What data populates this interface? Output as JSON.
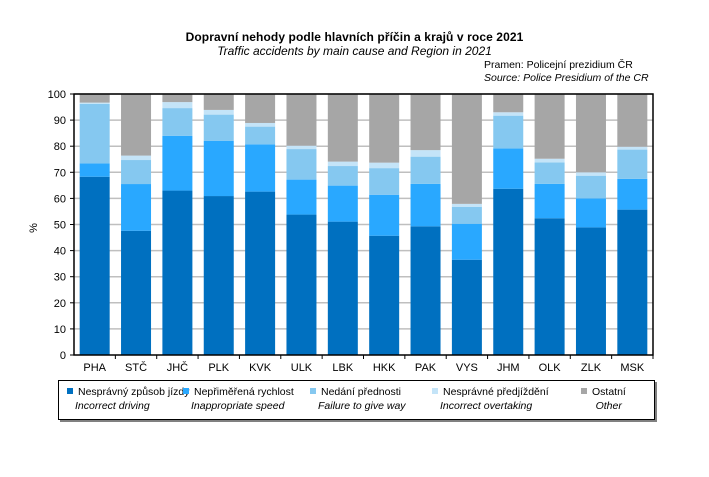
{
  "header": {
    "title": "Dopravní nehody podle hlavních příčin a krajů v roce 2021",
    "subtitle": "Traffic accidents by main cause and Region in 2021",
    "source_cz": "Pramen: Policejní prezidium ČR",
    "source_en": "Source: Police Presidium of the CR"
  },
  "chart_data": {
    "type": "bar",
    "stacked": true,
    "percent": true,
    "title": "Dopravní nehody podle hlavních příčin a krajů v roce 2021",
    "subtitle": "Traffic accidents by main cause and Region in 2021",
    "xlabel": "",
    "ylabel": "%",
    "ylim": [
      0,
      100
    ],
    "yticks": [
      0,
      10,
      20,
      30,
      40,
      50,
      60,
      70,
      80,
      90,
      100
    ],
    "grid": true,
    "legend_position": "bottom",
    "categories": [
      "PHA",
      "STČ",
      "JHČ",
      "PLK",
      "KVK",
      "ULK",
      "LBK",
      "HKK",
      "PAK",
      "VYS",
      "JHM",
      "OLK",
      "ZLK",
      "MSK"
    ],
    "series": [
      {
        "name": "Nesprávný způsob jízdy",
        "name_en": "Incorrect driving",
        "color": "#0070C0",
        "values": [
          68.3,
          47.6,
          63.0,
          60.9,
          62.6,
          53.8,
          51.1,
          45.7,
          49.3,
          36.5,
          63.7,
          52.4,
          48.9,
          55.7
        ]
      },
      {
        "name": "Nepřiměřená rychlost",
        "name_en": "Inappropriate speed",
        "color": "#29A8FF",
        "values": [
          5.1,
          17.9,
          21.0,
          21.2,
          18.1,
          13.4,
          13.8,
          15.7,
          16.3,
          13.8,
          15.4,
          13.2,
          11.1,
          11.8
        ]
      },
      {
        "name": "Nedání přednosti",
        "name_en": "Failure to give way",
        "color": "#85C8F0",
        "values": [
          22.8,
          9.2,
          10.6,
          10.0,
          6.8,
          11.7,
          7.5,
          10.2,
          10.4,
          6.5,
          12.6,
          8.2,
          8.7,
          11.2
        ]
      },
      {
        "name": "Nesprávné předjíždění",
        "name_en": "Incorrect overtaking",
        "color": "#C4E4F8",
        "values": [
          0.5,
          1.7,
          2.3,
          1.8,
          1.4,
          1.3,
          1.7,
          2.1,
          2.5,
          1.1,
          1.3,
          1.4,
          1.3,
          1.1
        ]
      },
      {
        "name": "Ostatní",
        "name_en": "Other",
        "color": "#A6A6A6",
        "values": [
          3.3,
          23.6,
          3.1,
          6.1,
          11.1,
          19.8,
          25.9,
          26.3,
          21.5,
          42.1,
          7.0,
          24.8,
          30.0,
          20.2
        ]
      }
    ]
  }
}
